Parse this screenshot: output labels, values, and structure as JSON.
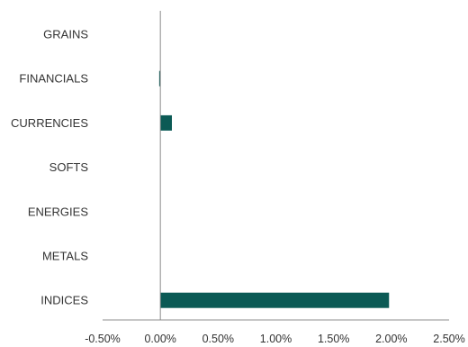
{
  "chart_data": {
    "type": "bar",
    "orientation": "horizontal",
    "categories": [
      "GRAINS",
      "FINANCIALS",
      "CURRENCIES",
      "SOFTS",
      "ENERGIES",
      "METALS",
      "INDICES"
    ],
    "values": [
      0.0,
      -0.01,
      0.1,
      0.0,
      0.0,
      0.0,
      1.98
    ],
    "value_unit": "%",
    "xlim": [
      -0.5,
      2.5
    ],
    "xticks": [
      -0.5,
      0.0,
      0.5,
      1.0,
      1.5,
      2.0,
      2.5
    ],
    "xtick_labels": [
      "-0.50%",
      "0.00%",
      "0.50%",
      "1.00%",
      "1.50%",
      "2.00%",
      "2.50%"
    ],
    "title": "",
    "xlabel": "",
    "ylabel": "",
    "grid": false,
    "legend": "none",
    "bar_color": "#0b5a55",
    "axis_color": "#8c8c8c",
    "text_color": "#333333"
  }
}
